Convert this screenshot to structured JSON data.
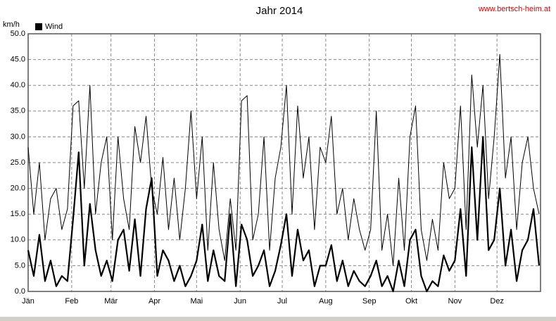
{
  "chart_data": {
    "type": "line",
    "title": "Jahr 2014",
    "y_label": "km/h",
    "source": "www.bertsch-heim.at",
    "x": [
      0,
      4,
      8,
      12,
      16,
      20,
      24,
      28,
      32,
      36,
      40,
      44,
      48,
      52,
      56,
      60,
      64,
      68,
      72,
      76,
      80,
      84,
      88,
      92,
      96,
      100,
      104,
      108,
      112,
      116,
      120,
      124,
      128,
      132,
      136,
      140,
      144,
      148,
      152,
      156,
      160,
      164,
      168,
      172,
      176,
      180,
      184,
      188,
      192,
      196,
      200,
      204,
      208,
      212,
      216,
      220,
      224,
      228,
      232,
      236,
      240,
      244,
      248,
      252,
      256,
      260,
      264,
      268,
      272,
      276,
      280,
      284,
      288,
      292,
      296,
      300,
      304,
      308,
      312,
      316,
      320,
      324,
      328,
      332,
      336,
      340,
      344,
      348,
      352,
      356,
      360,
      364
    ],
    "series": [
      {
        "name": "Wind",
        "color": "#000000",
        "width": 2.2,
        "values": [
          8,
          3,
          11,
          2,
          6,
          1,
          3,
          2,
          14,
          27,
          5,
          17,
          8,
          3,
          6,
          2,
          10,
          12,
          4,
          14,
          3,
          16,
          22,
          3,
          8,
          6,
          2,
          5,
          1,
          3,
          6,
          13,
          2,
          8,
          3,
          2,
          15,
          1,
          13,
          10,
          3,
          5,
          8,
          1,
          4,
          9,
          15,
          3,
          12,
          6,
          8,
          1,
          5,
          5,
          9,
          2,
          6,
          1,
          4,
          2,
          1,
          3,
          6,
          1,
          3,
          0,
          6,
          1,
          10,
          12,
          3,
          0,
          2,
          1,
          7,
          4,
          6,
          16,
          3,
          28,
          10,
          30,
          8,
          10,
          20,
          5,
          12,
          2,
          8,
          10,
          16,
          5
        ]
      },
      {
        "color": "#000000",
        "width": 1,
        "values": [
          28,
          15,
          25,
          10,
          18,
          20,
          12,
          16,
          36,
          37,
          20,
          40,
          15,
          25,
          30,
          10,
          30,
          18,
          12,
          32,
          25,
          34,
          20,
          15,
          26,
          12,
          22,
          10,
          20,
          35,
          18,
          30,
          8,
          25,
          12,
          6,
          18,
          8,
          37,
          38,
          10,
          15,
          30,
          8,
          22,
          28,
          40,
          15,
          36,
          22,
          30,
          12,
          28,
          25,
          34,
          15,
          20,
          10,
          18,
          12,
          8,
          12,
          35,
          8,
          15,
          5,
          22,
          8,
          30,
          36,
          12,
          6,
          14,
          8,
          25,
          18,
          20,
          36,
          12,
          42,
          28,
          40,
          18,
          30,
          46,
          22,
          30,
          12,
          25,
          30,
          20,
          15
        ]
      }
    ],
    "xlim": [
      0,
      365
    ],
    "xticks": [
      {
        "value": 0,
        "label": "Jän"
      },
      {
        "value": 31,
        "label": "Feb"
      },
      {
        "value": 59,
        "label": "Mär"
      },
      {
        "value": 90,
        "label": "Apr"
      },
      {
        "value": 120,
        "label": "Mai"
      },
      {
        "value": 151,
        "label": "Jun"
      },
      {
        "value": 181,
        "label": "Jul"
      },
      {
        "value": 212,
        "label": "Aug"
      },
      {
        "value": 243,
        "label": "Sep"
      },
      {
        "value": 273,
        "label": "Okt"
      },
      {
        "value": 304,
        "label": "Nov"
      },
      {
        "value": 334,
        "label": "Dez"
      }
    ],
    "ylim": [
      0,
      50
    ],
    "yticks": [
      {
        "value": 0,
        "label": "0.0"
      },
      {
        "value": 5,
        "label": "5.0"
      },
      {
        "value": 10,
        "label": "10.0"
      },
      {
        "value": 15,
        "label": "15.0"
      },
      {
        "value": 20,
        "label": "20.0"
      },
      {
        "value": 25,
        "label": "25.0"
      },
      {
        "value": 30,
        "label": "30.0"
      },
      {
        "value": 35,
        "label": "35.0"
      },
      {
        "value": 40,
        "label": "40.0"
      },
      {
        "value": 45,
        "label": "45.0"
      },
      {
        "value": 50,
        "label": "50.0"
      }
    ],
    "grid": true
  }
}
